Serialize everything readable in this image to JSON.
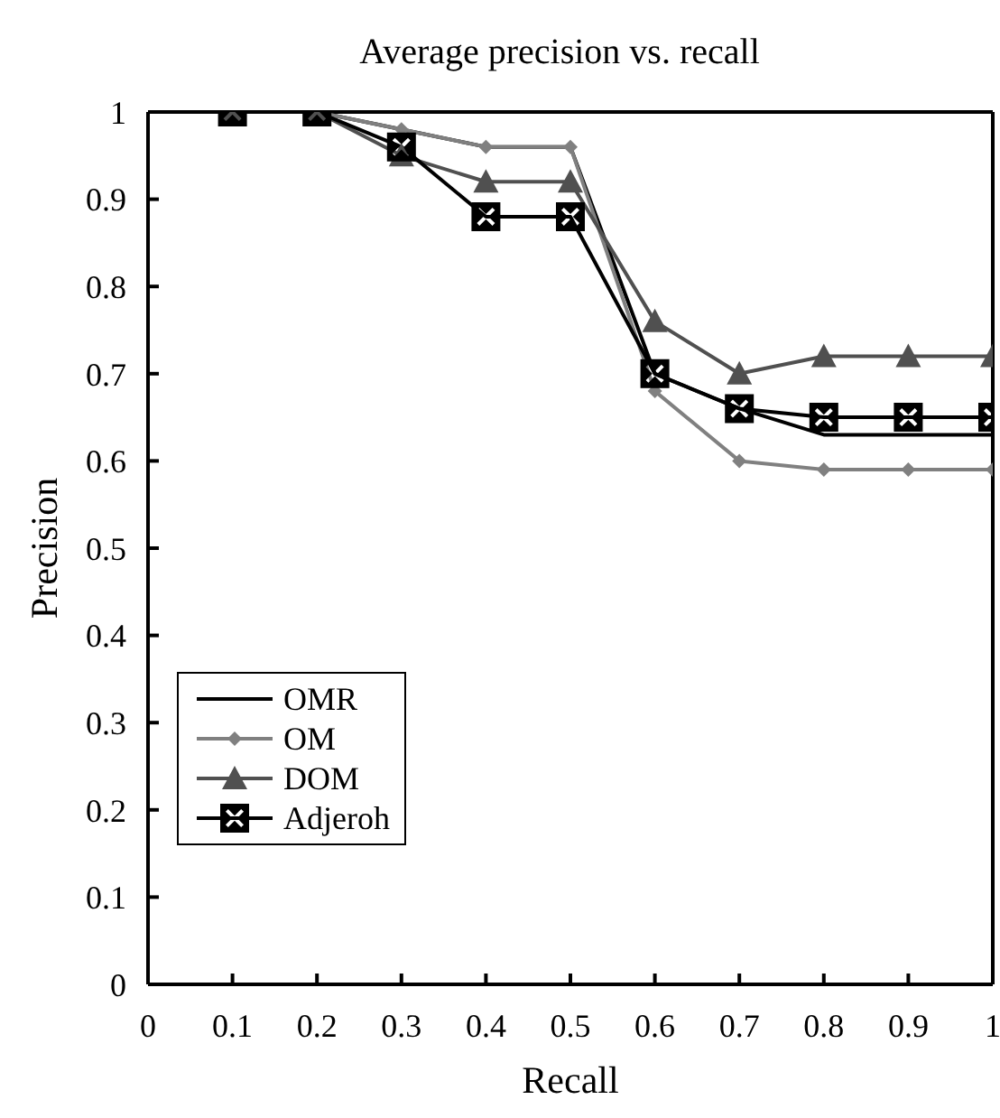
{
  "chart_data": {
    "type": "line",
    "title": "Average precision vs. recall",
    "xlabel": "Recall",
    "ylabel": "Precision",
    "x": [
      0.1,
      0.2,
      0.3,
      0.4,
      0.5,
      0.6,
      0.7,
      0.8,
      0.9,
      1
    ],
    "series": [
      {
        "name": "OMR",
        "color": "#000000",
        "marker": "none",
        "values": [
          1,
          1,
          0.98,
          0.96,
          0.96,
          0.7,
          0.66,
          0.63,
          0.63,
          0.63
        ]
      },
      {
        "name": "OM",
        "color": "#808080",
        "marker": "diamond",
        "values": [
          1,
          1,
          0.98,
          0.96,
          0.96,
          0.68,
          0.6,
          0.59,
          0.59,
          0.59
        ]
      },
      {
        "name": "DOM",
        "color": "#505050",
        "marker": "triangle",
        "values": [
          1,
          1,
          0.95,
          0.92,
          0.92,
          0.76,
          0.7,
          0.72,
          0.72,
          0.72
        ]
      },
      {
        "name": "Adjeroh",
        "color": "#000000",
        "marker": "square",
        "values": [
          1,
          1,
          0.96,
          0.88,
          0.88,
          0.7,
          0.66,
          0.65,
          0.65,
          0.65
        ]
      }
    ],
    "xlim": [
      0,
      1
    ],
    "xticks": [
      0,
      0.1,
      0.2,
      0.3,
      0.4,
      0.5,
      0.6,
      0.7,
      0.8,
      0.9,
      1
    ],
    "ylim": [
      0,
      1
    ],
    "yticks": [
      0,
      0.1,
      0.2,
      0.3,
      0.4,
      0.5,
      0.6,
      0.7,
      0.8,
      0.9,
      1
    ],
    "grid": false,
    "legend": "bottom left"
  }
}
